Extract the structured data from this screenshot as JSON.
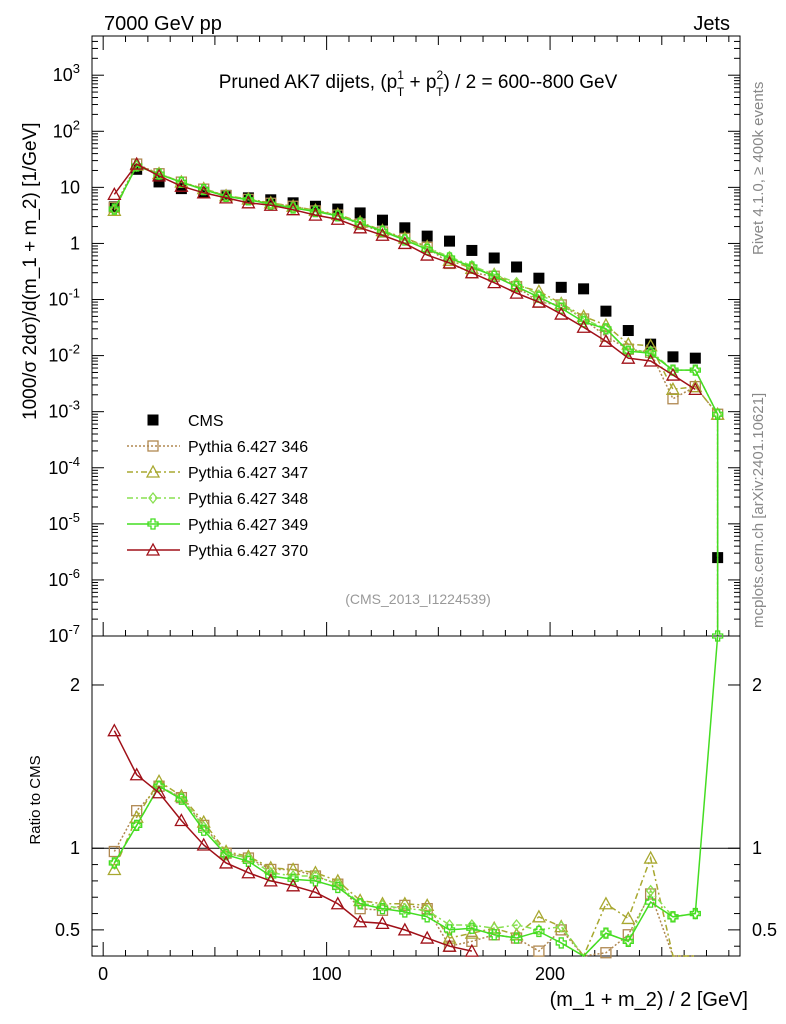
{
  "header": {
    "left": "7000 GeV pp",
    "right": "Jets",
    "side_rivet": "Rivet 4.1.0, ≥ 400k events",
    "side_site": "mcplots.cern.ch [arXiv:2401.10621]",
    "watermark": "(CMS_2013_I1224539)"
  },
  "chart_data": [
    {
      "type": "scatter",
      "panel": "main",
      "title": "Pruned AK7 dijets, (p_T^1 + p_T^2) / 2 = 600--800 GeV",
      "title_parts": {
        "pre": "Pruned AK7 dijets, (p",
        "t1": "1",
        "mid": " + p",
        "t2": "2",
        "post": ") / 2 = 600--800 GeV",
        "sub": "T"
      },
      "ylabel": "1000/σ  2dσ)/d(m_1 + m_2) [1/GeV]",
      "yscale": "log",
      "ylim": [
        1e-07,
        5000
      ],
      "yticks": [
        "10^-7",
        "10^-6",
        "10^-5",
        "10^-4",
        "10^-3",
        "10^-2",
        "10^-1",
        "1",
        "10",
        "10^2",
        "10^3"
      ],
      "xlim": [
        -5,
        285
      ],
      "bin_width": 10,
      "series": [
        {
          "name": "CMS",
          "color": "#000000",
          "style": "square",
          "x": [
            5,
            15,
            25,
            35,
            45,
            55,
            65,
            75,
            85,
            95,
            105,
            115,
            125,
            135,
            145,
            155,
            165,
            175,
            185,
            195,
            205,
            215,
            225,
            235,
            245,
            255,
            265,
            275
          ],
          "y": [
            4.5,
            21,
            12.5,
            9.5,
            8.2,
            7.2,
            6.5,
            6.0,
            5.3,
            4.6,
            4.1,
            3.5,
            2.6,
            1.9,
            1.35,
            1.1,
            0.75,
            0.55,
            0.38,
            0.24,
            0.165,
            0.155,
            0.062,
            0.028,
            0.016,
            0.0095,
            0.009,
            2.5e-06
          ]
        },
        {
          "name": "Pythia 6.427 346",
          "color": "#b08850",
          "style": "open-square",
          "dash": "2,2",
          "x": [
            5,
            15,
            25,
            35,
            45,
            55,
            65,
            75,
            85,
            95,
            105,
            115,
            125,
            135,
            145,
            155,
            165,
            175,
            185,
            195,
            205,
            215,
            225,
            235,
            245,
            255,
            265,
            275
          ],
          "y": [
            4.4,
            26,
            17.5,
            12.4,
            9.3,
            7.1,
            6.1,
            5.2,
            4.6,
            3.8,
            3.2,
            2.2,
            1.6,
            1.23,
            0.85,
            0.44,
            0.3,
            0.26,
            0.17,
            0.09,
            0.08,
            0.045,
            0.022,
            0.013,
            0.0115,
            0.0017,
            0.0028,
            0.0009
          ]
        },
        {
          "name": "Pythia 6.427 347",
          "color": "#a8a830",
          "style": "open-triangle",
          "dash": "6,3,2,3",
          "x": [
            5,
            15,
            25,
            35,
            45,
            55,
            65,
            75,
            85,
            95,
            105,
            115,
            125,
            135,
            145,
            155,
            165,
            175,
            185,
            195,
            205,
            215,
            225,
            235,
            245,
            255,
            265,
            275
          ],
          "y": [
            3.9,
            25,
            17.6,
            12.5,
            9.5,
            7.1,
            6.2,
            5.3,
            4.6,
            3.9,
            3.3,
            2.4,
            1.7,
            1.25,
            0.88,
            0.5,
            0.36,
            0.28,
            0.18,
            0.14,
            0.085,
            0.05,
            0.035,
            0.016,
            0.015,
            0.0025,
            0.0028,
            0.0009
          ]
        },
        {
          "name": "Pythia 6.427 348",
          "color": "#88e050",
          "style": "open-diamond",
          "dash": "6,3,2,3",
          "x": [
            5,
            15,
            25,
            35,
            45,
            55,
            65,
            75,
            85,
            95,
            105,
            115,
            125,
            135,
            145,
            155,
            165,
            175,
            185,
            195,
            205,
            215,
            225,
            235,
            245,
            255,
            265,
            275
          ],
          "y": [
            4.1,
            24,
            17.2,
            12.4,
            9.3,
            7.0,
            6.1,
            5.1,
            4.4,
            3.8,
            3.2,
            2.3,
            1.7,
            1.2,
            0.84,
            0.58,
            0.4,
            0.28,
            0.2,
            0.12,
            0.085,
            0.045,
            0.03,
            0.012,
            0.012,
            0.0055,
            0.0055,
            0.0009
          ]
        },
        {
          "name": "Pythia 6.427 349",
          "color": "#44dd22",
          "style": "open-cross",
          "dash": "",
          "x": [
            5,
            15,
            25,
            35,
            45,
            55,
            65,
            75,
            85,
            95,
            105,
            115,
            125,
            135,
            145,
            155,
            165,
            175,
            185,
            195,
            205,
            215,
            225,
            235,
            245,
            255,
            265,
            275
          ],
          "y": [
            4.1,
            24,
            17.2,
            12.3,
            9.1,
            6.9,
            6.0,
            5.0,
            4.3,
            3.7,
            3.1,
            2.3,
            1.65,
            1.15,
            0.78,
            0.55,
            0.38,
            0.26,
            0.17,
            0.11,
            0.07,
            0.04,
            0.03,
            0.012,
            0.011,
            0.0055,
            0.0055,
            0.0009
          ]
        },
        {
          "name": "Pythia 6.427 370",
          "color": "#a01018",
          "style": "open-triangle",
          "dash": "",
          "x": [
            5,
            15,
            25,
            35,
            45,
            55,
            65,
            75,
            85,
            95,
            105,
            115,
            125,
            135,
            145,
            155,
            165,
            175,
            185,
            195,
            205,
            215,
            225,
            235,
            245,
            255,
            265
          ],
          "y": [
            7.5,
            26,
            16.0,
            10.5,
            8.0,
            6.5,
            5.3,
            4.8,
            4.0,
            3.2,
            2.7,
            1.9,
            1.4,
            1.0,
            0.62,
            0.45,
            0.3,
            0.2,
            0.13,
            0.09,
            0.055,
            0.032,
            0.018,
            0.009,
            0.008,
            0.0045,
            0.0025
          ]
        }
      ]
    },
    {
      "type": "line",
      "panel": "ratio",
      "ylabel": "Ratio to CMS",
      "ylim": [
        0.34,
        2.3
      ],
      "yticks": [
        "0.5",
        "1",
        "2"
      ],
      "xticks": [
        "0",
        "100",
        "200"
      ],
      "xlabel": "(m_1 + m_2) / 2 [GeV]",
      "reference": 1,
      "series": [
        {
          "name": "Pythia 6.427 346",
          "x": [
            5,
            15,
            25,
            35,
            45,
            55,
            65,
            75,
            85,
            95,
            105,
            115,
            125,
            135,
            145,
            155,
            165,
            175,
            185,
            195,
            205,
            215,
            225,
            235,
            245,
            255,
            265
          ],
          "y": [
            0.98,
            1.23,
            1.38,
            1.31,
            1.14,
            0.97,
            0.94,
            0.87,
            0.87,
            0.83,
            0.78,
            0.63,
            0.62,
            0.65,
            0.63,
            0.4,
            0.43,
            0.47,
            0.45,
            0.37,
            0.5,
            0.3,
            0.36,
            0.47,
            0.72,
            0.18,
            0.3
          ]
        },
        {
          "name": "Pythia 6.427 347",
          "x": [
            5,
            15,
            25,
            35,
            45,
            55,
            65,
            75,
            85,
            95,
            105,
            115,
            125,
            135,
            145,
            155,
            165,
            175,
            185,
            195,
            205,
            215,
            225,
            235,
            245,
            255,
            265
          ],
          "y": [
            0.87,
            1.19,
            1.41,
            1.32,
            1.16,
            0.98,
            0.95,
            0.88,
            0.87,
            0.85,
            0.8,
            0.68,
            0.66,
            0.66,
            0.65,
            0.45,
            0.48,
            0.51,
            0.47,
            0.58,
            0.52,
            0.32,
            0.66,
            0.57,
            0.94,
            0.26,
            0.3
          ]
        },
        {
          "name": "Pythia 6.427 348",
          "x": [
            5,
            15,
            25,
            35,
            45,
            55,
            65,
            75,
            85,
            95,
            105,
            115,
            125,
            135,
            145,
            155,
            165,
            175,
            185,
            195,
            205,
            215,
            225,
            235,
            245,
            255,
            265
          ],
          "y": [
            0.91,
            1.14,
            1.38,
            1.31,
            1.13,
            0.97,
            0.94,
            0.85,
            0.83,
            0.83,
            0.78,
            0.66,
            0.65,
            0.63,
            0.62,
            0.53,
            0.53,
            0.51,
            0.53,
            0.5,
            0.52,
            0.29,
            0.48,
            0.43,
            0.74,
            0.58,
            0.6
          ]
        },
        {
          "name": "Pythia 6.427 349",
          "x": [
            5,
            15,
            25,
            35,
            45,
            55,
            65,
            75,
            85,
            95,
            105,
            115,
            125,
            135,
            145,
            155,
            165,
            175,
            185,
            195,
            205,
            215,
            225,
            235,
            245,
            255,
            265,
            275
          ],
          "y": [
            0.91,
            1.14,
            1.38,
            1.3,
            1.11,
            0.96,
            0.92,
            0.83,
            0.81,
            0.8,
            0.76,
            0.66,
            0.63,
            0.61,
            0.58,
            0.5,
            0.51,
            0.47,
            0.45,
            0.49,
            0.42,
            0.26,
            0.48,
            0.43,
            0.67,
            0.58,
            0.6,
            2.3
          ]
        },
        {
          "name": "Pythia 6.427 370",
          "x": [
            5,
            15,
            25,
            35,
            45,
            55,
            65,
            75,
            85,
            95,
            105,
            115,
            125,
            135,
            145,
            155,
            165
          ],
          "y": [
            1.72,
            1.45,
            1.34,
            1.17,
            1.02,
            0.91,
            0.85,
            0.8,
            0.77,
            0.73,
            0.66,
            0.55,
            0.54,
            0.5,
            0.45,
            0.4,
            0.37
          ]
        }
      ]
    }
  ]
}
